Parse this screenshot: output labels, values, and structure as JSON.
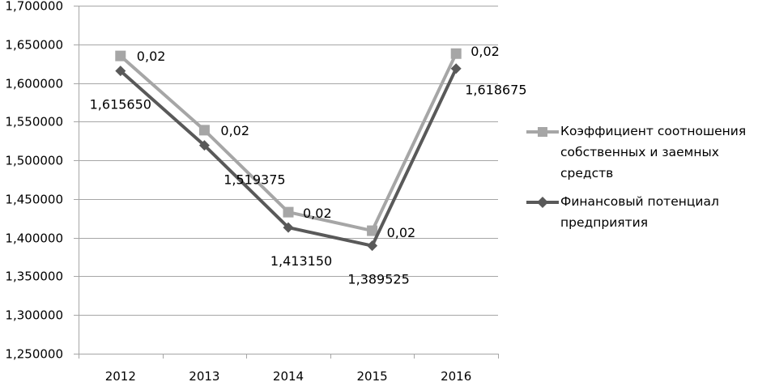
{
  "chart_data": {
    "type": "line",
    "categories": [
      "2012",
      "2013",
      "2014",
      "2015",
      "2016"
    ],
    "ylim": [
      1.25,
      1.7
    ],
    "yticks": [
      1.25,
      1.3,
      1.35,
      1.4,
      1.45,
      1.5,
      1.55,
      1.6,
      1.65,
      1.7
    ],
    "ytick_labels": [
      "1,250000",
      "1,300000",
      "1,350000",
      "1,400000",
      "1,450000",
      "1,500000",
      "1,550000",
      "1,600000",
      "1,650000",
      "1,700000"
    ],
    "grid": true,
    "legend_position": "right",
    "series": [
      {
        "name": "Коэффициент соотношения собственных и заемных средств",
        "values": [
          1.635,
          1.539,
          1.433,
          1.409,
          1.638
        ],
        "data_labels": [
          "0,02",
          "0,02",
          "0,02",
          "0,02",
          "0,02"
        ],
        "color": "#a6a6a6",
        "marker": "square"
      },
      {
        "name": "Финансовый потенциал предприятия",
        "values": [
          1.61565,
          1.519375,
          1.41315,
          1.389525,
          1.618675
        ],
        "data_labels": [
          "1,615650",
          "1,519375",
          "1,413150",
          "1,389525",
          "1,618675"
        ],
        "color": "#595959",
        "marker": "diamond"
      }
    ]
  }
}
